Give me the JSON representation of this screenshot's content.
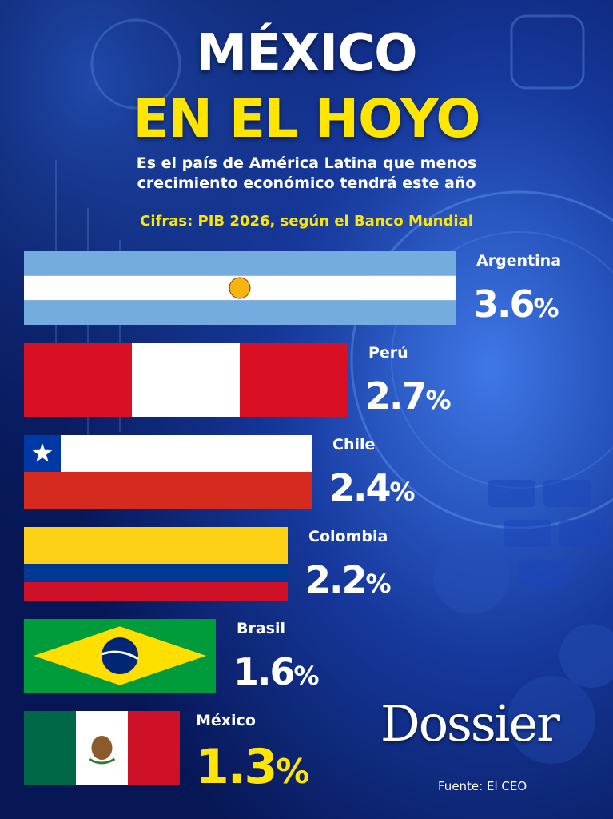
{
  "header": {
    "title_line1": "MÉXICO",
    "title_line2": "EN EL HOYO",
    "subtitle_line1": "Es el país de América Latina que menos",
    "subtitle_line2": "crecimiento económico tendrá este año",
    "note": "Cifras: PIB 2026, según el Banco Mundial"
  },
  "chart_data": {
    "type": "bar",
    "orientation": "horizontal",
    "unit": "%",
    "categories": [
      "Argentina",
      "Perú",
      "Chile",
      "Colombia",
      "Brasil",
      "México"
    ],
    "values": [
      3.6,
      2.7,
      2.4,
      2.2,
      1.6,
      1.3
    ],
    "value_labels": [
      "3.6",
      "2.7",
      "2.4",
      "2.2",
      "1.6",
      "1.3"
    ],
    "bar_style": [
      "flag-argentina",
      "flag-peru",
      "flag-chile",
      "flag-colombia",
      "flag-brasil",
      "flag-mexico"
    ],
    "highlight": "México",
    "colors": {
      "highlight": "#ffe600",
      "text": "#ffffff",
      "background": "#0a1f6b"
    }
  },
  "footer": {
    "brand": "Dossier",
    "source": "Fuente: El CEO"
  }
}
